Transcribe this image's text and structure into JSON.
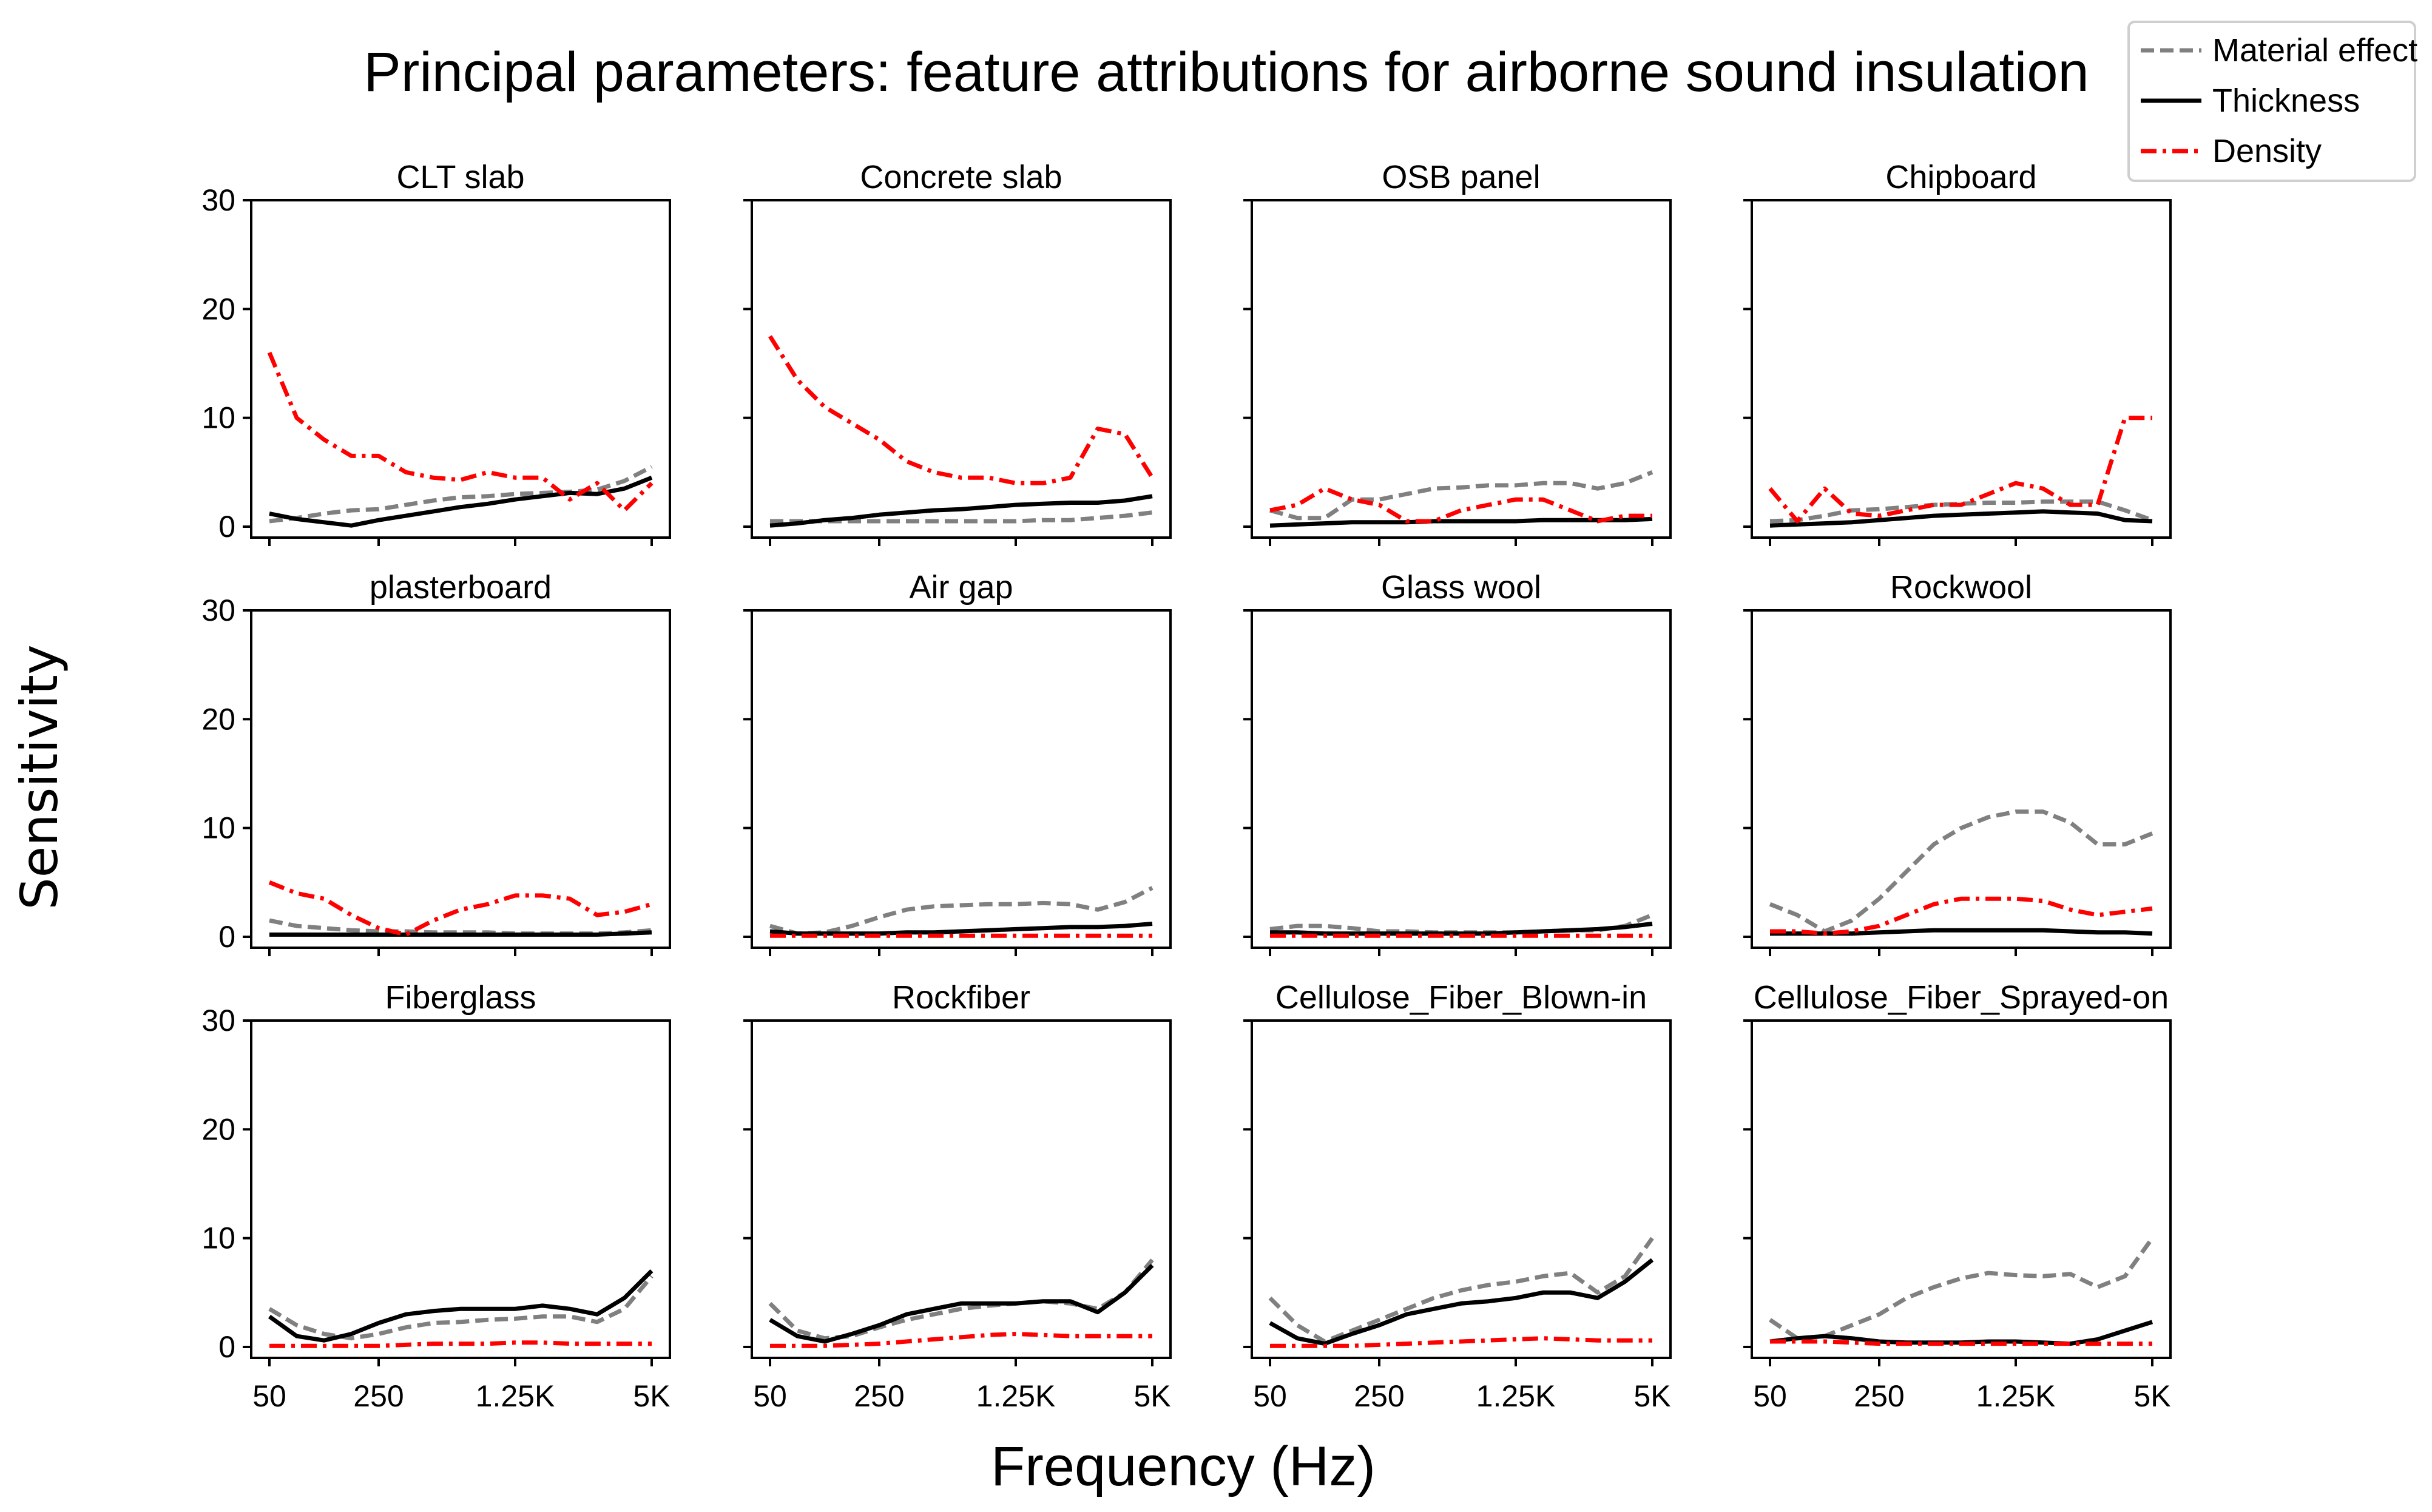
{
  "chart_data": {
    "type": "line",
    "title": "Principal parameters: feature attributions for airborne sound insulation",
    "xlabel": "Frequency (Hz)",
    "ylabel": "Sensitivity",
    "ylim": [
      0,
      30
    ],
    "yticks": [
      0,
      10,
      20,
      30
    ],
    "xtick_labels": [
      "50",
      "250",
      "1.25K",
      "5K"
    ],
    "x_points": 15,
    "legend": {
      "placement": "top-right",
      "entries": [
        {
          "name": "Material effect",
          "color": "#808080",
          "style": "dashed"
        },
        {
          "name": "Thickness",
          "color": "#000000",
          "style": "solid"
        },
        {
          "name": "Density",
          "color": "#ff0000",
          "style": "dashdot"
        }
      ]
    },
    "panels": [
      {
        "title": "CLT slab",
        "series": {
          "Material effect": [
            0.5,
            0.8,
            1.2,
            1.5,
            1.6,
            2.0,
            2.4,
            2.7,
            2.8,
            3.0,
            3.1,
            3.2,
            3.4,
            4.2,
            5.5
          ],
          "Thickness": [
            1.2,
            0.7,
            0.4,
            0.1,
            0.6,
            1.0,
            1.4,
            1.8,
            2.1,
            2.5,
            2.8,
            3.1,
            3.0,
            3.5,
            4.5
          ],
          "Density": [
            16.0,
            10.0,
            8.0,
            6.5,
            6.5,
            5.0,
            4.5,
            4.3,
            5.0,
            4.5,
            4.5,
            2.5,
            4.0,
            1.5,
            4.0
          ]
        }
      },
      {
        "title": "Concrete slab",
        "series": {
          "Material effect": [
            0.5,
            0.5,
            0.5,
            0.5,
            0.5,
            0.5,
            0.5,
            0.5,
            0.5,
            0.5,
            0.6,
            0.6,
            0.8,
            1.0,
            1.3
          ],
          "Thickness": [
            0.1,
            0.3,
            0.6,
            0.8,
            1.1,
            1.3,
            1.5,
            1.6,
            1.8,
            2.0,
            2.1,
            2.2,
            2.2,
            2.4,
            2.8
          ],
          "Density": [
            17.5,
            13.5,
            11.0,
            9.5,
            8.0,
            6.0,
            5.0,
            4.5,
            4.5,
            4.0,
            4.0,
            4.5,
            9.0,
            8.5,
            4.5
          ]
        }
      },
      {
        "title": "OSB panel",
        "series": {
          "Material effect": [
            1.5,
            0.8,
            0.8,
            2.5,
            2.5,
            3.0,
            3.5,
            3.6,
            3.8,
            3.8,
            4.0,
            4.0,
            3.5,
            4.0,
            5.0
          ],
          "Thickness": [
            0.1,
            0.2,
            0.3,
            0.4,
            0.4,
            0.4,
            0.5,
            0.5,
            0.5,
            0.5,
            0.6,
            0.6,
            0.6,
            0.6,
            0.7
          ],
          "Density": [
            1.5,
            2.0,
            3.5,
            2.5,
            2.0,
            0.5,
            0.5,
            1.5,
            2.0,
            2.5,
            2.5,
            1.5,
            0.5,
            1.0,
            1.0
          ]
        }
      },
      {
        "title": "Chipboard",
        "series": {
          "Material effect": [
            0.5,
            0.6,
            1.0,
            1.5,
            1.6,
            1.8,
            2.0,
            2.1,
            2.2,
            2.2,
            2.3,
            2.3,
            2.3,
            1.5,
            0.6
          ],
          "Thickness": [
            0.1,
            0.2,
            0.3,
            0.4,
            0.6,
            0.8,
            1.0,
            1.1,
            1.2,
            1.3,
            1.4,
            1.3,
            1.2,
            0.6,
            0.5
          ],
          "Density": [
            3.5,
            0.5,
            3.5,
            1.2,
            1.0,
            1.5,
            2.0,
            2.0,
            3.0,
            4.0,
            3.5,
            2.0,
            2.0,
            10.0,
            10.0
          ]
        }
      },
      {
        "title": "plasterboard",
        "series": {
          "Material effect": [
            1.5,
            1.0,
            0.8,
            0.6,
            0.5,
            0.5,
            0.4,
            0.4,
            0.4,
            0.3,
            0.3,
            0.3,
            0.3,
            0.4,
            0.6
          ],
          "Thickness": [
            0.2,
            0.2,
            0.2,
            0.2,
            0.2,
            0.2,
            0.2,
            0.2,
            0.2,
            0.2,
            0.2,
            0.2,
            0.2,
            0.3,
            0.4
          ],
          "Density": [
            5.0,
            4.0,
            3.5,
            2.0,
            0.8,
            0.2,
            1.5,
            2.5,
            3.0,
            3.8,
            3.8,
            3.5,
            2.0,
            2.3,
            3.0
          ]
        }
      },
      {
        "title": "Air gap",
        "series": {
          "Material effect": [
            1.0,
            0.3,
            0.4,
            1.0,
            1.8,
            2.5,
            2.8,
            2.9,
            3.0,
            3.0,
            3.1,
            3.0,
            2.5,
            3.2,
            4.5
          ],
          "Thickness": [
            0.5,
            0.3,
            0.3,
            0.3,
            0.3,
            0.4,
            0.4,
            0.5,
            0.6,
            0.7,
            0.8,
            0.9,
            0.9,
            1.0,
            1.2
          ],
          "Density": [
            0.1,
            0.1,
            0.1,
            0.1,
            0.1,
            0.1,
            0.1,
            0.1,
            0.1,
            0.1,
            0.1,
            0.1,
            0.1,
            0.1,
            0.1
          ]
        }
      },
      {
        "title": "Glass wool",
        "series": {
          "Material effect": [
            0.7,
            1.0,
            1.0,
            0.8,
            0.5,
            0.5,
            0.4,
            0.4,
            0.4,
            0.4,
            0.5,
            0.6,
            0.6,
            1.0,
            2.0
          ],
          "Thickness": [
            0.4,
            0.4,
            0.3,
            0.3,
            0.3,
            0.3,
            0.3,
            0.3,
            0.3,
            0.4,
            0.5,
            0.6,
            0.7,
            0.9,
            1.2
          ],
          "Density": [
            0.1,
            0.1,
            0.1,
            0.1,
            0.1,
            0.1,
            0.1,
            0.1,
            0.1,
            0.1,
            0.1,
            0.1,
            0.1,
            0.1,
            0.1
          ]
        }
      },
      {
        "title": "Rockwool",
        "series": {
          "Material effect": [
            3.0,
            2.0,
            0.5,
            1.5,
            3.5,
            6.0,
            8.5,
            10.0,
            11.0,
            11.5,
            11.5,
            10.5,
            8.5,
            8.5,
            9.5
          ],
          "Thickness": [
            0.3,
            0.3,
            0.3,
            0.3,
            0.4,
            0.5,
            0.6,
            0.6,
            0.6,
            0.6,
            0.6,
            0.5,
            0.4,
            0.4,
            0.3
          ],
          "Density": [
            0.5,
            0.5,
            0.3,
            0.5,
            1.0,
            2.0,
            3.0,
            3.5,
            3.5,
            3.5,
            3.3,
            2.5,
            2.0,
            2.3,
            2.6
          ]
        }
      },
      {
        "title": "Fiberglass",
        "series": {
          "Material effect": [
            3.5,
            2.0,
            1.2,
            0.8,
            1.2,
            1.8,
            2.2,
            2.3,
            2.5,
            2.6,
            2.8,
            2.8,
            2.3,
            3.5,
            6.5
          ],
          "Thickness": [
            2.8,
            1.0,
            0.6,
            1.2,
            2.2,
            3.0,
            3.3,
            3.5,
            3.5,
            3.5,
            3.8,
            3.5,
            3.0,
            4.5,
            7.0
          ],
          "Density": [
            0.1,
            0.1,
            0.1,
            0.1,
            0.1,
            0.2,
            0.3,
            0.3,
            0.3,
            0.4,
            0.4,
            0.3,
            0.3,
            0.3,
            0.3
          ]
        }
      },
      {
        "title": "Rockfiber",
        "series": {
          "Material effect": [
            4.0,
            1.5,
            0.8,
            1.0,
            1.8,
            2.5,
            3.0,
            3.5,
            3.8,
            4.0,
            4.2,
            4.0,
            3.5,
            5.0,
            8.0
          ],
          "Thickness": [
            2.5,
            1.0,
            0.5,
            1.2,
            2.0,
            3.0,
            3.5,
            4.0,
            4.0,
            4.0,
            4.2,
            4.2,
            3.2,
            5.0,
            7.5
          ],
          "Density": [
            0.1,
            0.1,
            0.1,
            0.2,
            0.3,
            0.5,
            0.7,
            0.9,
            1.1,
            1.2,
            1.1,
            1.0,
            1.0,
            1.0,
            1.0
          ]
        }
      },
      {
        "title": "Cellulose_Fiber_Blown-in",
        "series": {
          "Material effect": [
            4.5,
            2.0,
            0.5,
            1.5,
            2.5,
            3.5,
            4.5,
            5.2,
            5.7,
            6.0,
            6.5,
            6.8,
            5.0,
            6.5,
            10.0
          ],
          "Thickness": [
            2.2,
            0.8,
            0.3,
            1.2,
            2.0,
            3.0,
            3.5,
            4.0,
            4.2,
            4.5,
            5.0,
            5.0,
            4.5,
            6.0,
            8.0
          ],
          "Density": [
            0.1,
            0.1,
            0.1,
            0.1,
            0.2,
            0.3,
            0.4,
            0.5,
            0.6,
            0.7,
            0.8,
            0.7,
            0.6,
            0.6,
            0.6
          ]
        }
      },
      {
        "title": "Cellulose_Fiber_Sprayed-on",
        "series": {
          "Material effect": [
            2.5,
            0.8,
            1.0,
            2.0,
            3.0,
            4.5,
            5.5,
            6.3,
            6.8,
            6.6,
            6.5,
            6.7,
            5.5,
            6.5,
            10.0
          ],
          "Thickness": [
            0.5,
            0.8,
            1.0,
            0.8,
            0.5,
            0.4,
            0.4,
            0.4,
            0.5,
            0.5,
            0.4,
            0.3,
            0.7,
            1.5,
            2.3
          ],
          "Density": [
            0.5,
            0.5,
            0.5,
            0.4,
            0.3,
            0.3,
            0.3,
            0.3,
            0.3,
            0.3,
            0.3,
            0.3,
            0.3,
            0.3,
            0.3
          ]
        }
      }
    ]
  }
}
